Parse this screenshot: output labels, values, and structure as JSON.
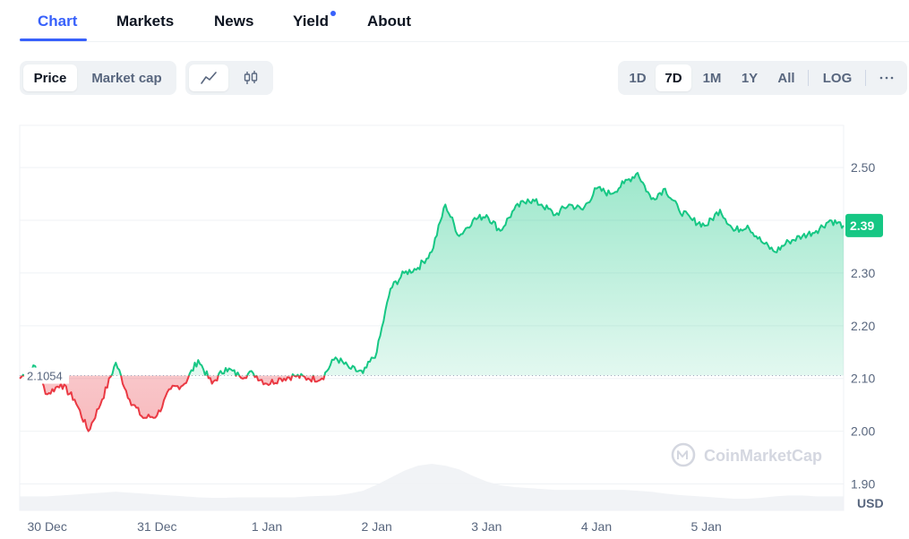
{
  "tabs": [
    {
      "label": "Chart",
      "active": true
    },
    {
      "label": "Markets",
      "active": false
    },
    {
      "label": "News",
      "active": false
    },
    {
      "label": "Yield",
      "active": false,
      "has_dot": true
    },
    {
      "label": "About",
      "active": false
    }
  ],
  "controls": {
    "price_label": "Price",
    "market_cap_label": "Market cap",
    "line_icon": "line-chart-icon",
    "candle_icon": "candlestick-icon",
    "ranges": [
      "1D",
      "7D",
      "1M",
      "1Y",
      "All"
    ],
    "active_range": "7D",
    "log_label": "LOG",
    "more_icon": "more-horizontal-icon"
  },
  "colors": {
    "accent": "#3861fb",
    "up": "#16c784",
    "down": "#ea3943"
  },
  "chart_data": {
    "type": "line",
    "y_unit": "USD",
    "yticks": [
      "2.50",
      "2.40",
      "2.30",
      "2.20",
      "2.10",
      "2.00",
      "1.90"
    ],
    "ylim": [
      1.85,
      2.58
    ],
    "xticks": [
      "30 Dec",
      "31 Dec",
      "1 Jan",
      "2 Jan",
      "3 Jan",
      "4 Jan",
      "5 Jan"
    ],
    "baseline": 2.1054,
    "baseline_label": "2.1054",
    "current_price": 2.39,
    "current_label": "2.39",
    "watermark": "CoinMarketCap",
    "x": [
      "29 Dec 18:00",
      "29 Dec 21:00",
      "30 Dec 00:00",
      "30 Dec 03:00",
      "30 Dec 06:00",
      "30 Dec 09:00",
      "30 Dec 12:00",
      "30 Dec 15:00",
      "30 Dec 18:00",
      "30 Dec 21:00",
      "31 Dec 00:00",
      "31 Dec 03:00",
      "31 Dec 06:00",
      "31 Dec 09:00",
      "31 Dec 12:00",
      "31 Dec 15:00",
      "31 Dec 18:00",
      "31 Dec 21:00",
      "1 Jan 00:00",
      "1 Jan 03:00",
      "1 Jan 06:00",
      "1 Jan 09:00",
      "1 Jan 12:00",
      "1 Jan 15:00",
      "1 Jan 18:00",
      "1 Jan 21:00",
      "2 Jan 00:00",
      "2 Jan 03:00",
      "2 Jan 06:00",
      "2 Jan 09:00",
      "2 Jan 12:00",
      "2 Jan 15:00",
      "2 Jan 18:00",
      "2 Jan 21:00",
      "3 Jan 00:00",
      "3 Jan 03:00",
      "3 Jan 06:00",
      "3 Jan 09:00",
      "3 Jan 12:00",
      "3 Jan 15:00",
      "3 Jan 18:00",
      "3 Jan 21:00",
      "4 Jan 00:00",
      "4 Jan 03:00",
      "4 Jan 06:00",
      "4 Jan 09:00",
      "4 Jan 12:00",
      "4 Jan 15:00",
      "4 Jan 18:00",
      "4 Jan 21:00",
      "5 Jan 00:00",
      "5 Jan 03:00",
      "5 Jan 06:00",
      "5 Jan 09:00",
      "5 Jan 12:00",
      "5 Jan 15:00",
      "5 Jan 18:00",
      "5 Jan 21:00",
      "6 Jan 00:00",
      "6 Jan 03:00",
      "6 Jan 06:00"
    ],
    "values": [
      2.1,
      2.125,
      2.07,
      2.09,
      2.06,
      2.0,
      2.06,
      2.13,
      2.06,
      2.025,
      2.03,
      2.08,
      2.09,
      2.135,
      2.09,
      2.12,
      2.105,
      2.11,
      2.09,
      2.1,
      2.105,
      2.1,
      2.1,
      2.14,
      2.12,
      2.11,
      2.15,
      2.27,
      2.3,
      2.31,
      2.34,
      2.43,
      2.37,
      2.4,
      2.41,
      2.38,
      2.42,
      2.44,
      2.43,
      2.41,
      2.43,
      2.42,
      2.46,
      2.45,
      2.47,
      2.49,
      2.44,
      2.46,
      2.42,
      2.4,
      2.39,
      2.42,
      2.38,
      2.39,
      2.36,
      2.34,
      2.36,
      2.37,
      2.38,
      2.4,
      2.39
    ],
    "volume_normalized": [
      0.3,
      0.3,
      0.3,
      0.32,
      0.34,
      0.36,
      0.38,
      0.4,
      0.38,
      0.36,
      0.34,
      0.32,
      0.3,
      0.28,
      0.27,
      0.27,
      0.28,
      0.28,
      0.28,
      0.28,
      0.28,
      0.3,
      0.31,
      0.32,
      0.36,
      0.42,
      0.55,
      0.7,
      0.85,
      0.96,
      1.0,
      0.96,
      0.88,
      0.74,
      0.62,
      0.54,
      0.5,
      0.48,
      0.46,
      0.44,
      0.44,
      0.44,
      0.44,
      0.44,
      0.44,
      0.42,
      0.4,
      0.36,
      0.33,
      0.31,
      0.29,
      0.27,
      0.25,
      0.25,
      0.27,
      0.3,
      0.32,
      0.32,
      0.3,
      0.3,
      0.3
    ]
  }
}
